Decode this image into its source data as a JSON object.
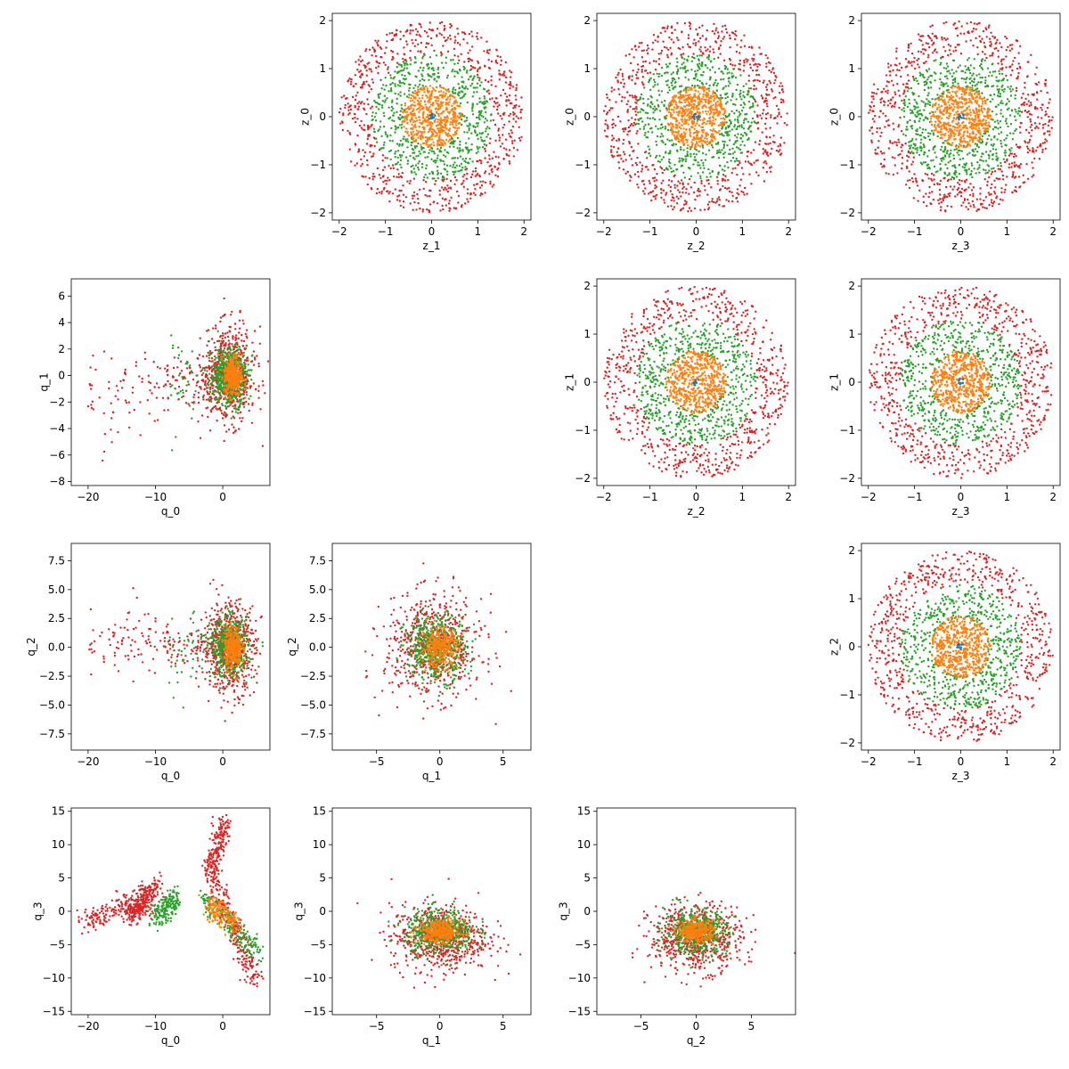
{
  "chart_data": [
    {
      "type": "scatter",
      "xlabel": "z_1",
      "ylabel": "z_0",
      "distribution": "disk",
      "xlim": [
        -2.15,
        2.15
      ],
      "ylim": [
        -2.15,
        2.15
      ],
      "xticks": [
        -2,
        -1,
        0,
        1,
        2
      ],
      "yticks": [
        -2,
        -1,
        0,
        1,
        2
      ],
      "series": [
        {
          "color": "#d62728",
          "radius_range": [
            1.3,
            2.0
          ]
        },
        {
          "color": "#2ca02c",
          "radius_range": [
            0.6,
            1.3
          ]
        },
        {
          "color": "#ff7f0e",
          "radius_range": [
            0,
            0.65
          ]
        },
        {
          "color": "#1f77b4",
          "radius_range": [
            0,
            0.08
          ]
        }
      ]
    },
    {
      "type": "scatter",
      "xlabel": "z_2",
      "ylabel": "z_0",
      "distribution": "disk",
      "xlim": [
        -2.15,
        2.15
      ],
      "ylim": [
        -2.15,
        2.15
      ],
      "xticks": [
        -2,
        -1,
        0,
        1,
        2
      ],
      "yticks": [
        -2,
        -1,
        0,
        1,
        2
      ],
      "series": [
        {
          "color": "#d62728",
          "radius_range": [
            1.3,
            2.0
          ]
        },
        {
          "color": "#2ca02c",
          "radius_range": [
            0.6,
            1.3
          ]
        },
        {
          "color": "#ff7f0e",
          "radius_range": [
            0,
            0.65
          ]
        },
        {
          "color": "#1f77b4",
          "radius_range": [
            0,
            0.08
          ]
        }
      ]
    },
    {
      "type": "scatter",
      "xlabel": "z_3",
      "ylabel": "z_0",
      "distribution": "disk",
      "xlim": [
        -2.15,
        2.15
      ],
      "ylim": [
        -2.15,
        2.15
      ],
      "xticks": [
        -2,
        -1,
        0,
        1,
        2
      ],
      "yticks": [
        -2,
        -1,
        0,
        1,
        2
      ],
      "series": [
        {
          "color": "#d62728",
          "radius_range": [
            1.3,
            2.0
          ]
        },
        {
          "color": "#2ca02c",
          "radius_range": [
            0.6,
            1.3
          ]
        },
        {
          "color": "#ff7f0e",
          "radius_range": [
            0,
            0.65
          ]
        },
        {
          "color": "#1f77b4",
          "radius_range": [
            0,
            0.08
          ]
        }
      ]
    },
    {
      "type": "scatter",
      "xlabel": "q_0",
      "ylabel": "q_1",
      "distribution": "cloud",
      "xlim": [
        -22.5,
        7
      ],
      "ylim": [
        -8.3,
        7.3
      ],
      "xticks": [
        -20,
        -10,
        0
      ],
      "yticks": [
        -8,
        -6,
        -4,
        -2,
        0,
        2,
        4,
        6
      ],
      "series": [
        {
          "color": "#d62728",
          "center": [
            1,
            0
          ],
          "spread": [
            3.5,
            3.2
          ],
          "tail_to": [
            -20,
            -2
          ]
        },
        {
          "color": "#2ca02c",
          "center": [
            1,
            0
          ],
          "spread": [
            2.5,
            2
          ],
          "tail_to": [
            -8,
            -1
          ]
        },
        {
          "color": "#ff7f0e",
          "center": [
            1.5,
            0
          ],
          "spread": [
            1.2,
            1.4
          ]
        }
      ]
    },
    {
      "type": "scatter",
      "xlabel": "z_2",
      "ylabel": "z_1",
      "distribution": "disk",
      "xlim": [
        -2.15,
        2.15
      ],
      "ylim": [
        -2.15,
        2.15
      ],
      "xticks": [
        -2,
        -1,
        0,
        1,
        2
      ],
      "yticks": [
        -2,
        -1,
        0,
        1,
        2
      ],
      "series": [
        {
          "color": "#d62728",
          "radius_range": [
            1.3,
            2.0
          ]
        },
        {
          "color": "#2ca02c",
          "radius_range": [
            0.6,
            1.3
          ]
        },
        {
          "color": "#ff7f0e",
          "radius_range": [
            0,
            0.65
          ]
        },
        {
          "color": "#1f77b4",
          "radius_range": [
            0,
            0.08
          ]
        }
      ]
    },
    {
      "type": "scatter",
      "xlabel": "z_3",
      "ylabel": "z_1",
      "distribution": "disk",
      "xlim": [
        -2.15,
        2.15
      ],
      "ylim": [
        -2.15,
        2.15
      ],
      "xticks": [
        -2,
        -1,
        0,
        1,
        2
      ],
      "yticks": [
        -2,
        -1,
        0,
        1,
        2
      ],
      "series": [
        {
          "color": "#d62728",
          "radius_range": [
            1.3,
            2.0
          ]
        },
        {
          "color": "#2ca02c",
          "radius_range": [
            0.6,
            1.3
          ]
        },
        {
          "color": "#ff7f0e",
          "radius_range": [
            0,
            0.65
          ]
        },
        {
          "color": "#1f77b4",
          "radius_range": [
            0,
            0.08
          ]
        }
      ]
    },
    {
      "type": "scatter",
      "xlabel": "q_0",
      "ylabel": "q_2",
      "distribution": "cloud",
      "xlim": [
        -22.5,
        7
      ],
      "ylim": [
        -8.9,
        9
      ],
      "xticks": [
        -20,
        -10,
        0
      ],
      "yticks": [
        -7.5,
        -5,
        -2.5,
        0,
        2.5,
        5,
        7.5
      ],
      "ytick_labels": [
        "−7.5",
        "−5.0",
        "−2.5",
        "0.0",
        "2.5",
        "5.0",
        "7.5"
      ],
      "series": [
        {
          "color": "#d62728",
          "center": [
            1,
            0
          ],
          "spread": [
            3.5,
            3.5
          ],
          "tail_to": [
            -20,
            1
          ]
        },
        {
          "color": "#2ca02c",
          "center": [
            1,
            0
          ],
          "spread": [
            2.5,
            2.3
          ],
          "tail_to": [
            -8,
            0
          ]
        },
        {
          "color": "#ff7f0e",
          "center": [
            1.5,
            0
          ],
          "spread": [
            1.2,
            1.6
          ]
        }
      ]
    },
    {
      "type": "scatter",
      "xlabel": "q_1",
      "ylabel": "q_2",
      "distribution": "cloud",
      "xlim": [
        -8.5,
        7.2
      ],
      "ylim": [
        -8.9,
        9
      ],
      "xticks": [
        -5,
        0,
        5
      ],
      "yticks": [
        -7.5,
        -5,
        -2.5,
        0,
        2.5,
        5,
        7.5
      ],
      "ytick_labels": [
        "−7.5",
        "−5.0",
        "−2.5",
        "0.0",
        "2.5",
        "5.0",
        "7.5"
      ],
      "series": [
        {
          "color": "#d62728",
          "center": [
            -0.5,
            0
          ],
          "spread": [
            3.5,
            4
          ]
        },
        {
          "color": "#2ca02c",
          "center": [
            -0.3,
            0
          ],
          "spread": [
            2.2,
            2.6
          ]
        },
        {
          "color": "#ff7f0e",
          "center": [
            0,
            0
          ],
          "spread": [
            1.3,
            1.5
          ]
        }
      ]
    },
    {
      "type": "scatter",
      "xlabel": "z_3",
      "ylabel": "z_2",
      "distribution": "disk",
      "xlim": [
        -2.15,
        2.15
      ],
      "ylim": [
        -2.15,
        2.15
      ],
      "xticks": [
        -2,
        -1,
        0,
        1,
        2
      ],
      "yticks": [
        -2,
        -1,
        0,
        1,
        2
      ],
      "series": [
        {
          "color": "#d62728",
          "radius_range": [
            1.3,
            2.0
          ]
        },
        {
          "color": "#2ca02c",
          "radius_range": [
            0.6,
            1.3
          ]
        },
        {
          "color": "#ff7f0e",
          "radius_range": [
            0,
            0.65
          ]
        },
        {
          "color": "#1f77b4",
          "radius_range": [
            0,
            0.08
          ]
        }
      ]
    },
    {
      "type": "scatter",
      "xlabel": "q_0",
      "ylabel": "q_3",
      "distribution": "arms",
      "xlim": [
        -22.5,
        7
      ],
      "ylim": [
        -15.5,
        15.5
      ],
      "xticks": [
        -20,
        -10,
        0
      ],
      "yticks": [
        -15,
        -10,
        -5,
        0,
        5,
        10,
        15
      ],
      "series": [
        {
          "color": "#d62728",
          "arms": [
            [
              [
                -21,
                -9
              ],
              [
                -2,
                4
              ]
            ],
            [
              [
                -14,
                -11
              ],
              [
                -1,
                2
              ]
            ],
            [
              [
                -1,
                5
              ],
              [
                4,
                -11
              ]
            ],
            [
              [
                -2,
                0
              ],
              [
                5,
                13
              ]
            ]
          ]
        },
        {
          "color": "#2ca02c",
          "arms": [
            [
              [
                -10,
                -7
              ],
              [
                -1,
                2
              ]
            ],
            [
              [
                -3,
                5
              ],
              [
                2,
                -6
              ]
            ]
          ]
        },
        {
          "color": "#ff7f0e",
          "arms": [
            [
              [
                -2,
                2
              ],
              [
                1,
                -2
              ]
            ]
          ]
        }
      ]
    },
    {
      "type": "scatter",
      "xlabel": "q_1",
      "ylabel": "q_3",
      "distribution": "cloud",
      "xlim": [
        -8.5,
        7.2
      ],
      "ylim": [
        -15.5,
        15.5
      ],
      "xticks": [
        -5,
        0,
        5
      ],
      "yticks": [
        -15,
        -10,
        -5,
        0,
        5,
        10,
        15
      ],
      "series": [
        {
          "color": "#d62728",
          "center": [
            0,
            -4
          ],
          "spread": [
            3.5,
            4.5
          ]
        },
        {
          "color": "#2ca02c",
          "center": [
            0,
            -3
          ],
          "spread": [
            2.5,
            3
          ]
        },
        {
          "color": "#ff7f0e",
          "center": [
            0,
            -3
          ],
          "spread": [
            1.5,
            1.5
          ]
        }
      ]
    },
    {
      "type": "scatter",
      "xlabel": "q_2",
      "ylabel": "q_3",
      "distribution": "cloud",
      "xlim": [
        -9,
        9
      ],
      "ylim": [
        -15.5,
        15.5
      ],
      "xticks": [
        -5,
        0,
        5
      ],
      "yticks": [
        -15,
        -10,
        -5,
        0,
        5,
        10,
        15
      ],
      "series": [
        {
          "color": "#d62728",
          "center": [
            0,
            -4
          ],
          "spread": [
            3.8,
            4.5
          ]
        },
        {
          "color": "#2ca02c",
          "center": [
            0,
            -3
          ],
          "spread": [
            2.6,
            3
          ]
        },
        {
          "color": "#ff7f0e",
          "center": [
            0,
            -3
          ],
          "spread": [
            1.5,
            1.5
          ]
        }
      ]
    }
  ]
}
